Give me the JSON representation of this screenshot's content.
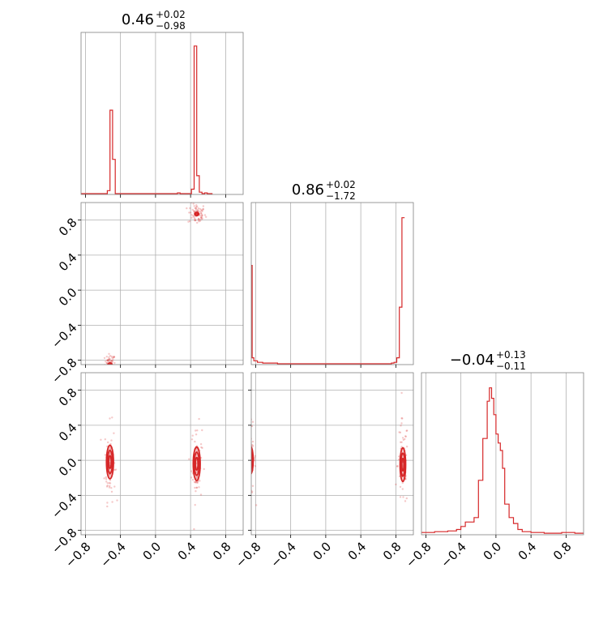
{
  "chart_data": {
    "type": "corner",
    "color": "#d62728",
    "axis_range": [
      -0.85,
      1.0
    ],
    "tick_values": [
      -0.8,
      -0.4,
      0.0,
      0.4,
      0.8
    ],
    "tick_labels": [
      "−0.8",
      "−0.4",
      "0.0",
      "0.4",
      "0.8"
    ],
    "parameters": [
      {
        "median": "0.46",
        "plus": "+0.02",
        "minus": "−0.98"
      },
      {
        "median": "0.86",
        "plus": "+0.02",
        "minus": "−1.72"
      },
      {
        "median": "−0.04",
        "plus": "+0.13",
        "minus": "−0.11"
      }
    ],
    "histograms": [
      {
        "bins": [
          [
            -0.95,
            -0.55,
            0.0
          ],
          [
            -0.55,
            -0.52,
            0.02
          ],
          [
            -0.52,
            -0.49,
            0.56
          ],
          [
            -0.49,
            -0.46,
            0.23
          ],
          [
            -0.46,
            -0.43,
            0.0
          ],
          [
            -0.43,
            0.25,
            0.0
          ],
          [
            0.25,
            0.28,
            0.005
          ],
          [
            0.28,
            0.41,
            0.0
          ],
          [
            0.41,
            0.44,
            0.03
          ],
          [
            0.44,
            0.47,
            0.99
          ],
          [
            0.47,
            0.5,
            0.12
          ],
          [
            0.5,
            0.53,
            0.01
          ],
          [
            0.53,
            0.56,
            0.0
          ],
          [
            0.56,
            0.59,
            0.005
          ],
          [
            0.59,
            0.65,
            0.0
          ]
        ]
      },
      {
        "bins": [
          [
            -0.95,
            -0.88,
            0.0
          ],
          [
            -0.88,
            -0.86,
            0.18
          ],
          [
            -0.86,
            -0.84,
            0.66
          ],
          [
            -0.84,
            -0.82,
            0.04
          ],
          [
            -0.82,
            -0.78,
            0.02
          ],
          [
            -0.78,
            -0.72,
            0.01
          ],
          [
            -0.72,
            -0.55,
            0.005
          ],
          [
            -0.55,
            0.75,
            0.0
          ],
          [
            0.75,
            0.78,
            0.005
          ],
          [
            0.78,
            0.81,
            0.01
          ],
          [
            0.81,
            0.84,
            0.04
          ],
          [
            0.84,
            0.87,
            0.38
          ],
          [
            0.87,
            0.9,
            0.98
          ]
        ]
      },
      {
        "bins": [
          [
            -0.85,
            -0.7,
            0.01
          ],
          [
            -0.7,
            -0.55,
            0.015
          ],
          [
            -0.55,
            -0.45,
            0.02
          ],
          [
            -0.45,
            -0.4,
            0.03
          ],
          [
            -0.4,
            -0.35,
            0.05
          ],
          [
            -0.35,
            -0.3,
            0.08
          ],
          [
            -0.3,
            -0.25,
            0.08
          ],
          [
            -0.25,
            -0.2,
            0.11
          ],
          [
            -0.2,
            -0.15,
            0.36
          ],
          [
            -0.15,
            -0.1,
            0.64
          ],
          [
            -0.1,
            -0.075,
            0.89
          ],
          [
            -0.075,
            -0.05,
            0.98
          ],
          [
            -0.05,
            -0.025,
            0.91
          ],
          [
            -0.025,
            0.0,
            0.8
          ],
          [
            0.0,
            0.025,
            0.67
          ],
          [
            0.025,
            0.05,
            0.61
          ],
          [
            0.05,
            0.075,
            0.56
          ],
          [
            0.075,
            0.1,
            0.44
          ],
          [
            0.1,
            0.15,
            0.2
          ],
          [
            0.15,
            0.2,
            0.11
          ],
          [
            0.2,
            0.25,
            0.07
          ],
          [
            0.25,
            0.3,
            0.03
          ],
          [
            0.3,
            0.4,
            0.015
          ],
          [
            0.4,
            0.55,
            0.01
          ],
          [
            0.55,
            0.75,
            0.005
          ],
          [
            0.75,
            0.9,
            0.01
          ],
          [
            0.9,
            1.0,
            0.005
          ]
        ]
      }
    ],
    "pairs": [
      {
        "row": 1,
        "col": 0,
        "clusters": [
          {
            "x": -0.52,
            "y": -0.85,
            "sx": 0.015,
            "sy": 0.012,
            "scatter_sx": 0.03,
            "scatter_sy": 0.06
          },
          {
            "x": 0.47,
            "y": 0.87,
            "sx": 0.015,
            "sy": 0.012,
            "scatter_sx": 0.05,
            "scatter_sy": 0.06
          }
        ]
      },
      {
        "row": 2,
        "col": 0,
        "clusters": [
          {
            "x": -0.52,
            "y": -0.02,
            "sx": 0.025,
            "sy": 0.12,
            "scatter_sx": 0.03,
            "scatter_sy": 0.22
          },
          {
            "x": 0.47,
            "y": -0.04,
            "sx": 0.025,
            "sy": 0.12,
            "scatter_sx": 0.03,
            "scatter_sy": 0.22
          }
        ]
      },
      {
        "row": 2,
        "col": 1,
        "clusters": [
          {
            "x": -0.86,
            "y": 0.0,
            "sx": 0.02,
            "sy": 0.1,
            "scatter_sx": 0.03,
            "scatter_sy": 0.2
          },
          {
            "x": 0.88,
            "y": -0.05,
            "sx": 0.02,
            "sy": 0.12,
            "scatter_sx": 0.03,
            "scatter_sy": 0.25
          }
        ]
      }
    ]
  }
}
